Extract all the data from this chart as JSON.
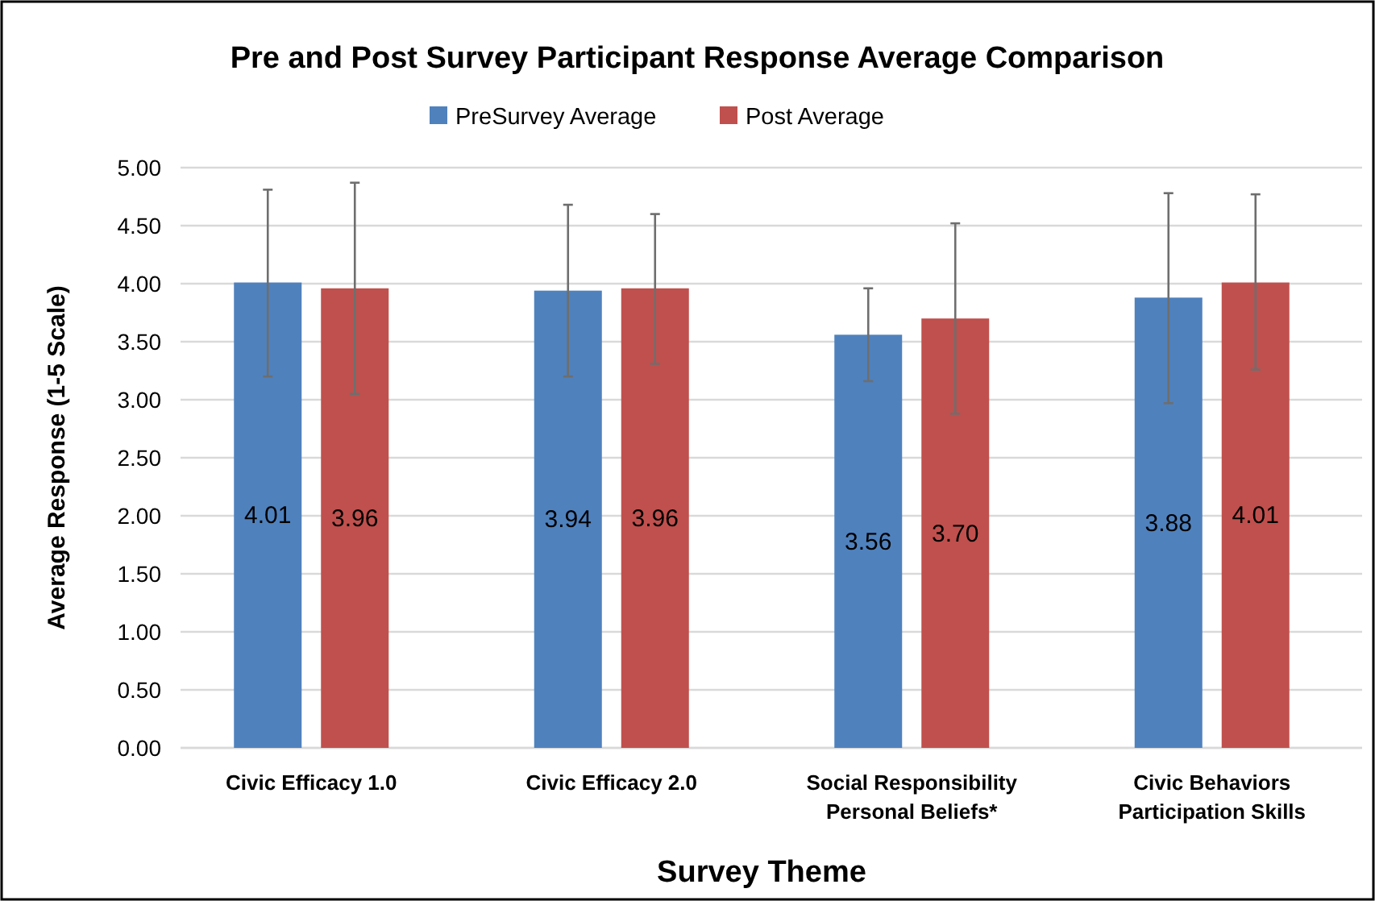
{
  "chart_data": {
    "type": "bar",
    "title": "Pre and Post Survey Participant Response Average Comparison",
    "xlabel": "Survey Theme",
    "ylabel": "Average Response (1-5 Scale)",
    "categories": [
      "Civic Efficacy 1.0",
      "Civic Efficacy 2.0",
      "Social Responsibility\nPersonal Beliefs*",
      "Civic Behaviors\nParticipation Skills"
    ],
    "series": [
      {
        "name": "PreSurvey Average",
        "color": "#4f81bd",
        "values": [
          4.01,
          3.94,
          3.56,
          3.88
        ],
        "value_labels": [
          "4.01",
          "3.94",
          "3.56",
          "3.88"
        ],
        "errors": [
          [
            3.2,
            4.81
          ],
          [
            3.2,
            4.68
          ],
          [
            3.16,
            3.96
          ],
          [
            2.97,
            4.78
          ]
        ]
      },
      {
        "name": "Post Average",
        "color": "#c0504d",
        "values": [
          3.96,
          3.96,
          3.7,
          4.01
        ],
        "value_labels": [
          "3.96",
          "3.96",
          "3.70",
          "4.01"
        ],
        "errors": [
          [
            3.05,
            4.87
          ],
          [
            3.31,
            4.6
          ],
          [
            2.88,
            4.52
          ],
          [
            3.26,
            4.77
          ]
        ]
      }
    ],
    "ylim": [
      0,
      5
    ],
    "yticks": [
      {
        "value": 0,
        "label": "0.00"
      },
      {
        "value": 0.5,
        "label": "0.50"
      },
      {
        "value": 1,
        "label": "1.00"
      },
      {
        "value": 1.5,
        "label": "1.50"
      },
      {
        "value": 2,
        "label": "2.00"
      },
      {
        "value": 2.5,
        "label": "2.50"
      },
      {
        "value": 3,
        "label": "3.00"
      },
      {
        "value": 3.5,
        "label": "3.50"
      },
      {
        "value": 4,
        "label": "4.00"
      },
      {
        "value": 4.5,
        "label": "4.50"
      },
      {
        "value": 5,
        "label": "5.00"
      }
    ],
    "grid": "y",
    "legend": "top"
  }
}
